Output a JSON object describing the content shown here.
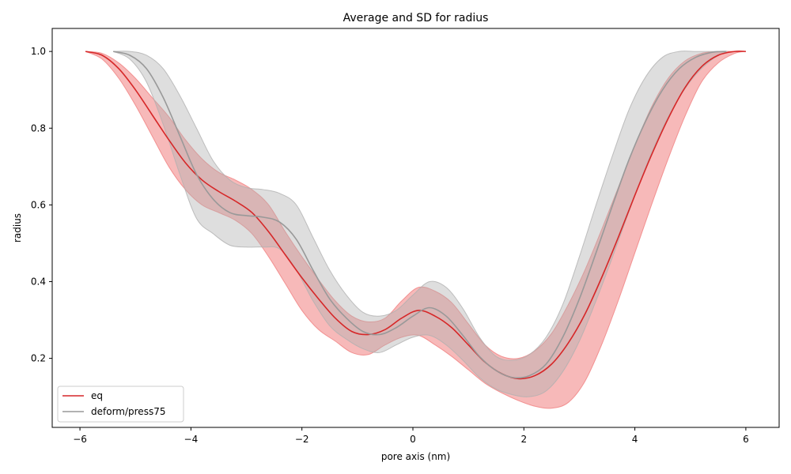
{
  "chart_data": {
    "type": "line",
    "title": "Average and SD for radius",
    "xlabel": "pore axis (nm)",
    "ylabel": "radius",
    "xlim": [
      -6.5,
      6.6
    ],
    "ylim": [
      0.02,
      1.06
    ],
    "xticks": [
      -6,
      -4,
      -2,
      0,
      2,
      4,
      6
    ],
    "xtick_labels": [
      "−6",
      "−4",
      "−2",
      "0",
      "2",
      "4",
      "6"
    ],
    "yticks": [
      0.2,
      0.4,
      0.6,
      0.8,
      1.0
    ],
    "ytick_labels": [
      "0.2",
      "0.4",
      "0.6",
      "0.8",
      "1.0"
    ],
    "grid": false,
    "legend_position": "lower-left",
    "series": [
      {
        "name": "eq",
        "color": "#d62728",
        "band_color": "#f08080",
        "x": [
          -5.9,
          -5.6,
          -5.3,
          -5.0,
          -4.7,
          -4.4,
          -4.1,
          -3.8,
          -3.5,
          -3.2,
          -2.9,
          -2.6,
          -2.3,
          -2.0,
          -1.7,
          -1.4,
          -1.1,
          -0.8,
          -0.5,
          -0.2,
          0.1,
          0.4,
          0.7,
          1.0,
          1.3,
          1.6,
          1.9,
          2.2,
          2.5,
          2.8,
          3.1,
          3.4,
          3.7,
          4.0,
          4.3,
          4.6,
          4.9,
          5.2,
          5.5,
          5.8,
          6.0
        ],
        "y": [
          1.0,
          0.99,
          0.955,
          0.9,
          0.835,
          0.77,
          0.71,
          0.665,
          0.635,
          0.61,
          0.58,
          0.53,
          0.47,
          0.41,
          0.355,
          0.305,
          0.27,
          0.262,
          0.275,
          0.305,
          0.325,
          0.31,
          0.28,
          0.235,
          0.19,
          0.16,
          0.147,
          0.155,
          0.185,
          0.24,
          0.315,
          0.41,
          0.515,
          0.625,
          0.73,
          0.825,
          0.905,
          0.96,
          0.99,
          1.0,
          1.0
        ],
        "upper": [
          1.0,
          0.995,
          0.97,
          0.93,
          0.88,
          0.83,
          0.77,
          0.72,
          0.685,
          0.665,
          0.64,
          0.6,
          0.53,
          0.465,
          0.405,
          0.35,
          0.31,
          0.295,
          0.305,
          0.35,
          0.385,
          0.375,
          0.345,
          0.29,
          0.235,
          0.205,
          0.2,
          0.22,
          0.265,
          0.34,
          0.43,
          0.535,
          0.645,
          0.755,
          0.855,
          0.93,
          0.975,
          0.995,
          1.0,
          1.0,
          1.0
        ],
        "lower": [
          1.0,
          0.98,
          0.93,
          0.86,
          0.78,
          0.7,
          0.64,
          0.6,
          0.58,
          0.56,
          0.525,
          0.465,
          0.395,
          0.325,
          0.275,
          0.245,
          0.215,
          0.21,
          0.235,
          0.255,
          0.26,
          0.235,
          0.205,
          0.17,
          0.135,
          0.11,
          0.09,
          0.075,
          0.07,
          0.085,
          0.14,
          0.235,
          0.35,
          0.475,
          0.6,
          0.72,
          0.83,
          0.92,
          0.97,
          0.995,
          1.0
        ]
      },
      {
        "name": "deform/press75",
        "color": "#999999",
        "band_color": "#b0b0b0",
        "x": [
          -5.4,
          -5.1,
          -4.8,
          -4.5,
          -4.2,
          -3.9,
          -3.6,
          -3.3,
          -3.0,
          -2.7,
          -2.4,
          -2.1,
          -1.8,
          -1.5,
          -1.2,
          -0.9,
          -0.6,
          -0.3,
          0.0,
          0.3,
          0.6,
          0.9,
          1.2,
          1.5,
          1.8,
          2.1,
          2.4,
          2.7,
          3.0,
          3.3,
          3.6,
          3.9,
          4.2,
          4.5,
          4.8,
          5.1,
          5.4,
          5.65
        ],
        "y": [
          1.0,
          0.99,
          0.955,
          0.88,
          0.78,
          0.68,
          0.615,
          0.58,
          0.572,
          0.568,
          0.555,
          0.51,
          0.43,
          0.355,
          0.305,
          0.27,
          0.262,
          0.28,
          0.31,
          0.332,
          0.31,
          0.26,
          0.205,
          0.168,
          0.15,
          0.155,
          0.185,
          0.255,
          0.355,
          0.475,
          0.6,
          0.72,
          0.82,
          0.9,
          0.955,
          0.985,
          0.998,
          1.0
        ],
        "upper": [
          1.0,
          1.0,
          0.99,
          0.955,
          0.885,
          0.8,
          0.715,
          0.665,
          0.645,
          0.64,
          0.63,
          0.6,
          0.515,
          0.43,
          0.365,
          0.32,
          0.31,
          0.325,
          0.365,
          0.4,
          0.385,
          0.33,
          0.255,
          0.205,
          0.195,
          0.21,
          0.255,
          0.34,
          0.465,
          0.6,
          0.73,
          0.85,
          0.935,
          0.985,
          1.0,
          1.0,
          1.0,
          1.0
        ],
        "lower": [
          1.0,
          0.98,
          0.92,
          0.81,
          0.68,
          0.565,
          0.525,
          0.495,
          0.49,
          0.49,
          0.485,
          0.43,
          0.35,
          0.285,
          0.25,
          0.225,
          0.215,
          0.235,
          0.255,
          0.26,
          0.235,
          0.195,
          0.15,
          0.12,
          0.105,
          0.1,
          0.115,
          0.165,
          0.245,
          0.35,
          0.465,
          0.585,
          0.7,
          0.8,
          0.88,
          0.94,
          0.98,
          1.0
        ]
      }
    ]
  }
}
